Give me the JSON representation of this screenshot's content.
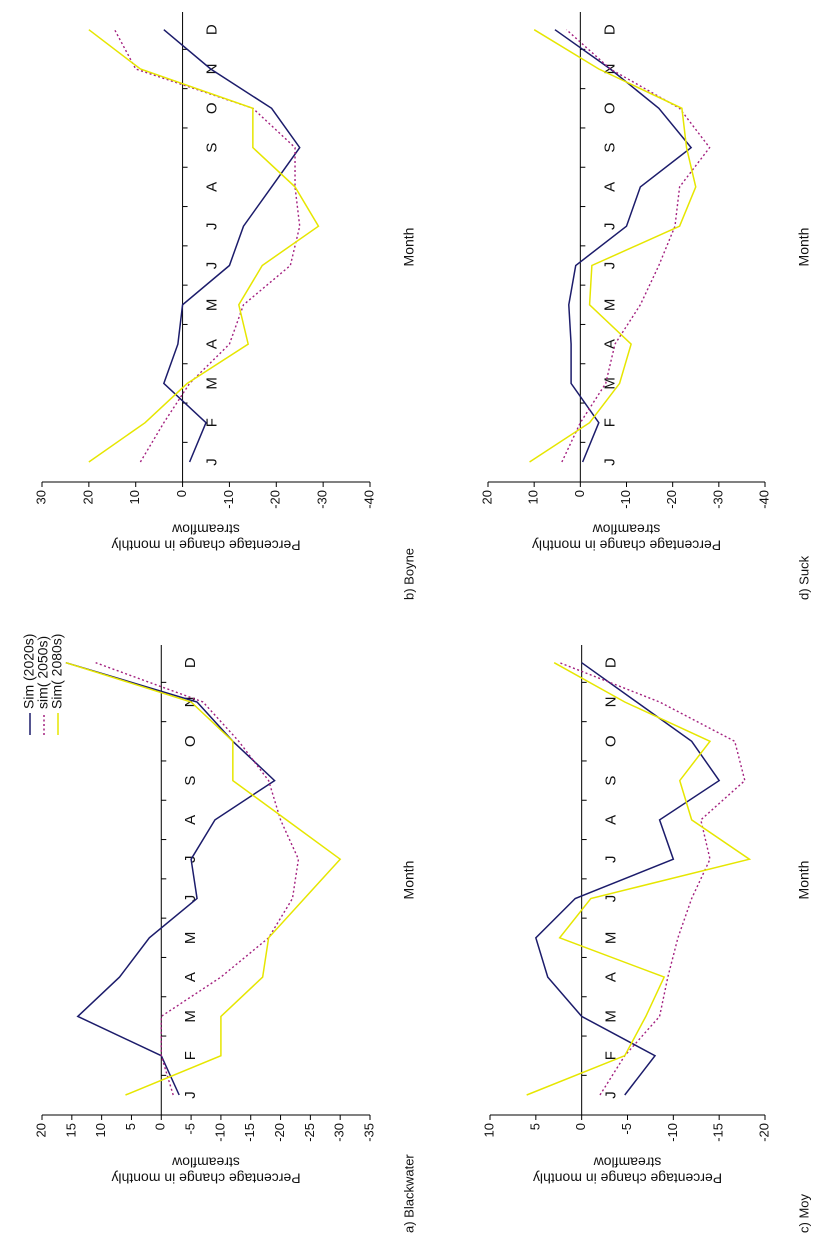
{
  "chart_data": [
    {
      "type": "line",
      "panel_label": "a) Blackwater",
      "xlabel": "Month",
      "ylabel": [
        "Percentage change in monthly",
        "streamflow"
      ],
      "categories": [
        "J",
        "F",
        "M",
        "A",
        "M",
        "J",
        "J",
        "A",
        "S",
        "O",
        "N",
        "D"
      ],
      "ylim": [
        -35,
        20
      ],
      "yticks": [
        20,
        15,
        10,
        5,
        0,
        -5,
        -10,
        -15,
        -20,
        -25,
        -30,
        -35
      ],
      "legend": true,
      "series": [
        {
          "name": "Sim (2020s)",
          "color": "#1c1c6b",
          "style": "solid",
          "values": [
            -3,
            0,
            14,
            7,
            2,
            -6,
            -5,
            -9,
            -19,
            -12,
            -6,
            16
          ]
        },
        {
          "name": "sim( 2050s)",
          "color": "#a3207f",
          "style": "dotted",
          "values": [
            -2,
            0,
            0,
            -10,
            -18,
            -22,
            -23,
            -20,
            -18,
            -13,
            -7,
            11
          ]
        },
        {
          "name": "Sim( 2080s)",
          "color": "#e6e600",
          "style": "solid",
          "values": [
            6,
            -10,
            -10,
            -17,
            -18,
            -24,
            -30,
            -21,
            -12,
            -12,
            -5,
            16
          ]
        }
      ]
    },
    {
      "type": "line",
      "panel_label": "b) Boyne",
      "xlabel": "Month",
      "ylabel": [
        "Percentage change in monthly",
        "streamflow"
      ],
      "categories": [
        "J",
        "F",
        "M",
        "A",
        "M",
        "J",
        "J",
        "A",
        "S",
        "O",
        "N",
        "D"
      ],
      "ylim": [
        -40,
        30
      ],
      "yticks": [
        30,
        20,
        10,
        0,
        -10,
        -20,
        -30,
        -40
      ],
      "series": [
        {
          "color": "#1c1c6b",
          "style": "solid",
          "values": [
            -1.5,
            -5,
            4,
            1,
            0,
            -10,
            -13,
            -19,
            -25,
            -19,
            -6,
            4
          ]
        },
        {
          "color": "#a3207f",
          "style": "dotted",
          "values": [
            9,
            4,
            -1.5,
            -10,
            -13,
            -23,
            -25,
            -24,
            -24,
            -15,
            10,
            14.5
          ]
        },
        {
          "color": "#e6e600",
          "style": "solid",
          "values": [
            20,
            8,
            -1,
            -14,
            -12,
            -17,
            -29,
            -24,
            -15,
            -15,
            9,
            20
          ]
        }
      ]
    },
    {
      "type": "line",
      "panel_label": "c) Moy",
      "xlabel": "Month",
      "ylabel": [
        "Percentage change in monthly",
        "streamflow"
      ],
      "categories": [
        "J",
        "F",
        "M",
        "A",
        "M",
        "J",
        "J",
        "A",
        "S",
        "O",
        "N",
        "D"
      ],
      "ylim": [
        -20,
        10
      ],
      "yticks": [
        10,
        5,
        0,
        -5,
        -10,
        -15,
        -20
      ],
      "series": [
        {
          "color": "#1c1c6b",
          "style": "solid",
          "values": [
            -4.7,
            -8,
            0,
            3.7,
            5,
            0.7,
            -10,
            -8.5,
            -15,
            -12,
            -6,
            0
          ]
        },
        {
          "color": "#a3207f",
          "style": "dotted",
          "values": [
            -2,
            -4.7,
            -8.5,
            -9.4,
            -10.5,
            -12,
            -14,
            -13,
            -17.8,
            -16.7,
            -8.5,
            2.4
          ]
        },
        {
          "color": "#e6e600",
          "style": "solid",
          "values": [
            6,
            -4.7,
            -7,
            -9,
            2.4,
            -1,
            -18.3,
            -12,
            -10.7,
            -14,
            -4.7,
            3
          ]
        }
      ]
    },
    {
      "type": "line",
      "panel_label": "d) Suck",
      "xlabel": "Month",
      "ylabel": [
        "Percentage change in monthly",
        "streamflow"
      ],
      "categories": [
        "J",
        "F",
        "M",
        "A",
        "M",
        "J",
        "J",
        "A",
        "S",
        "O",
        "N",
        "D"
      ],
      "ylim": [
        -40,
        20
      ],
      "yticks": [
        20,
        10,
        0,
        -10,
        -20,
        -30,
        -40
      ],
      "series": [
        {
          "color": "#1c1c6b",
          "style": "solid",
          "values": [
            -0.5,
            -4,
            2,
            2,
            2.5,
            1,
            -10,
            -13,
            -24,
            -17,
            -6.5,
            5.5
          ]
        },
        {
          "color": "#a3207f",
          "style": "dotted",
          "values": [
            4,
            0,
            -5.5,
            -7.5,
            -13,
            -17,
            -20.5,
            -21.5,
            -28,
            -21.5,
            -6.5,
            3
          ]
        },
        {
          "color": "#e6e600",
          "style": "solid",
          "values": [
            11,
            -2,
            -8.5,
            -11,
            -2,
            -2.5,
            -21.5,
            -25,
            -23,
            -22,
            -4,
            10
          ]
        }
      ]
    }
  ]
}
